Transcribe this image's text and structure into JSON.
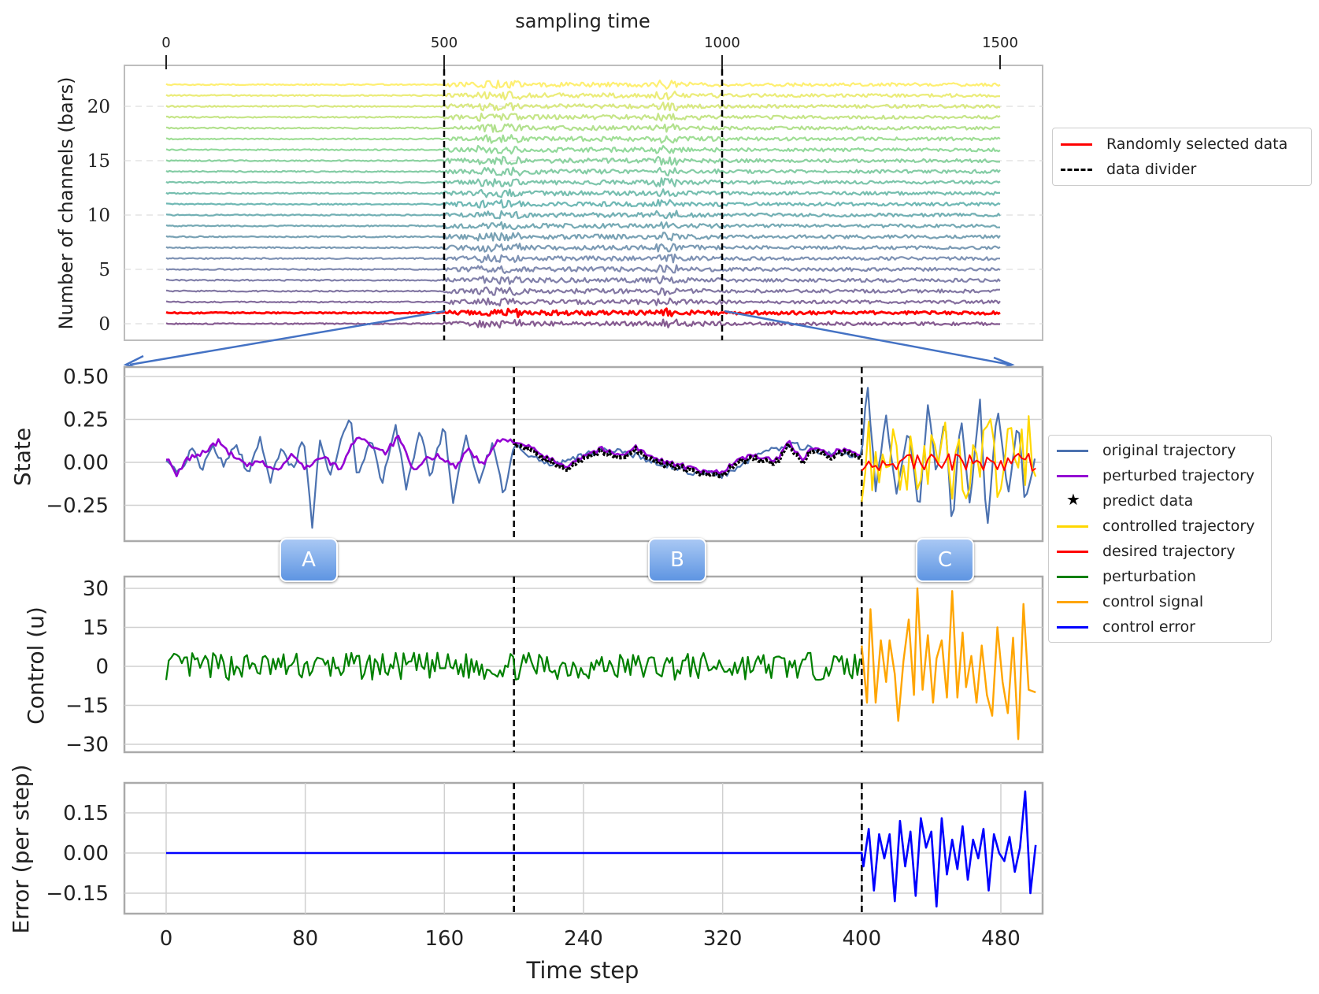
{
  "colors": {
    "original": "#4c72b0",
    "perturbed": "#9400d3",
    "predict": "#000000",
    "controlled": "#ffd700",
    "desired": "#ff0000",
    "perturbation": "#008000",
    "control_signal": "#ffa500",
    "control_error": "#0000ff",
    "selected": "#ff0000",
    "divider": "#000000",
    "arrow": "#4472c4"
  },
  "legend_top": [
    {
      "label": "Randomly selected data",
      "style": "line",
      "color": "#ff0000"
    },
    {
      "label": "data divider",
      "style": "dash",
      "color": "#000000"
    }
  ],
  "legend_bottom": [
    {
      "label": "original trajectory",
      "style": "line",
      "color": "#4c72b0"
    },
    {
      "label": "perturbed trajectory",
      "style": "line",
      "color": "#9400d3"
    },
    {
      "label": "predict data",
      "style": "star",
      "color": "#000000"
    },
    {
      "label": "controlled trajectory",
      "style": "line",
      "color": "#ffd700"
    },
    {
      "label": "desired trajectory",
      "style": "line",
      "color": "#ff0000"
    },
    {
      "label": "perturbation",
      "style": "line",
      "color": "#008000"
    },
    {
      "label": "control signal",
      "style": "line",
      "color": "#ffa500"
    },
    {
      "label": "control error",
      "style": "line",
      "color": "#0000ff"
    }
  ],
  "phase_labels": [
    "A",
    "B",
    "C"
  ],
  "chart_data": [
    {
      "type": "line",
      "title": "",
      "xlabel": "sampling time",
      "xlabel_position": "top",
      "ylabel": "Number of channels (bars)",
      "xlim": [
        0,
        1500
      ],
      "ylim": [
        -1,
        23
      ],
      "xticks": [
        0,
        500,
        1000,
        1500
      ],
      "yticks": [
        0,
        5,
        10,
        15,
        20
      ],
      "grid": "horizontal dashed",
      "channels": 23,
      "channel_offsets": [
        0,
        22
      ],
      "colormap": "viridis",
      "highlighted_channel": 1,
      "dividers": [
        500,
        1000
      ],
      "legend_placement": "right",
      "series": [
        {
          "name": "Randomly selected data",
          "channel": 1
        },
        {
          "name": "data divider",
          "x": [
            500,
            1000
          ]
        }
      ]
    },
    {
      "type": "line",
      "title": "",
      "ylabel": "State",
      "xlim": [
        -6,
        506
      ],
      "ylim": [
        -0.45,
        0.52
      ],
      "yticks": [
        -0.25,
        0.0,
        0.25,
        0.5
      ],
      "ytick_labels": [
        "−0.25",
        "0.00",
        "0.25",
        "0.50"
      ],
      "grid": "on",
      "dividers": [
        200,
        400
      ],
      "series": [
        {
          "name": "original trajectory",
          "x_range": [
            0,
            500
          ],
          "points": [
            [
              0,
              0.03
            ],
            [
              8,
              -0.06
            ],
            [
              15,
              0.08
            ],
            [
              20,
              -0.05
            ],
            [
              27,
              0.1
            ],
            [
              33,
              -0.02
            ],
            [
              40,
              0.12
            ],
            [
              47,
              -0.07
            ],
            [
              54,
              0.14
            ],
            [
              60,
              -0.1
            ],
            [
              66,
              0.09
            ],
            [
              73,
              -0.05
            ],
            [
              79,
              0.16
            ],
            [
              84,
              -0.38
            ],
            [
              88,
              0.14
            ],
            [
              94,
              -0.09
            ],
            [
              100,
              0.1
            ],
            [
              106,
              0.27
            ],
            [
              110,
              -0.1
            ],
            [
              118,
              0.14
            ],
            [
              124,
              -0.12
            ],
            [
              132,
              0.2
            ],
            [
              138,
              -0.14
            ],
            [
              146,
              0.18
            ],
            [
              152,
              -0.08
            ],
            [
              160,
              0.22
            ],
            [
              165,
              -0.24
            ],
            [
              172,
              0.16
            ],
            [
              180,
              -0.1
            ],
            [
              188,
              0.12
            ],
            [
              194,
              -0.2
            ],
            [
              200,
              0.1
            ],
            [
              208,
              0.05
            ],
            [
              220,
              -0.02
            ],
            [
              240,
              0.04
            ],
            [
              260,
              0.08
            ],
            [
              280,
              0.0
            ],
            [
              300,
              -0.05
            ],
            [
              320,
              -0.08
            ],
            [
              340,
              0.05
            ],
            [
              360,
              0.1
            ],
            [
              380,
              0.06
            ],
            [
              400,
              0.03
            ],
            [
              403,
              0.48
            ],
            [
              408,
              -0.15
            ],
            [
              414,
              0.26
            ],
            [
              420,
              -0.2
            ],
            [
              427,
              0.2
            ],
            [
              433,
              -0.3
            ],
            [
              438,
              0.35
            ],
            [
              443,
              -0.1
            ],
            [
              448,
              0.28
            ],
            [
              452,
              -0.42
            ],
            [
              457,
              0.3
            ],
            [
              462,
              -0.25
            ],
            [
              468,
              0.36
            ],
            [
              472,
              -0.4
            ],
            [
              478,
              0.34
            ],
            [
              484,
              -0.2
            ],
            [
              490,
              0.24
            ],
            [
              494,
              -0.25
            ],
            [
              500,
              0.05
            ]
          ]
        },
        {
          "name": "perturbed trajectory",
          "x_range": [
            0,
            400
          ],
          "points": [
            [
              0,
              0.03
            ],
            [
              6,
              -0.08
            ],
            [
              12,
              0.02
            ],
            [
              20,
              0.05
            ],
            [
              30,
              0.12
            ],
            [
              38,
              0.04
            ],
            [
              46,
              -0.02
            ],
            [
              55,
              0.0
            ],
            [
              64,
              -0.05
            ],
            [
              72,
              0.04
            ],
            [
              80,
              -0.03
            ],
            [
              90,
              0.03
            ],
            [
              100,
              -0.04
            ],
            [
              110,
              0.16
            ],
            [
              118,
              0.1
            ],
            [
              126,
              0.06
            ],
            [
              134,
              0.15
            ],
            [
              142,
              -0.06
            ],
            [
              150,
              0.02
            ],
            [
              158,
              0.04
            ],
            [
              166,
              -0.03
            ],
            [
              174,
              0.08
            ],
            [
              182,
              -0.02
            ],
            [
              190,
              0.12
            ],
            [
              200,
              0.13
            ],
            [
              210,
              0.08
            ],
            [
              220,
              0.02
            ],
            [
              230,
              -0.02
            ],
            [
              240,
              0.04
            ],
            [
              250,
              0.08
            ],
            [
              260,
              0.04
            ],
            [
              270,
              0.09
            ],
            [
              280,
              0.02
            ],
            [
              290,
              0.0
            ],
            [
              300,
              -0.03
            ],
            [
              310,
              -0.06
            ],
            [
              320,
              -0.05
            ],
            [
              330,
              0.02
            ],
            [
              340,
              0.04
            ],
            [
              350,
              0.0
            ],
            [
              358,
              0.12
            ],
            [
              366,
              0.02
            ],
            [
              374,
              0.1
            ],
            [
              382,
              0.05
            ],
            [
              390,
              0.08
            ],
            [
              400,
              0.04
            ]
          ]
        },
        {
          "name": "predict data",
          "x_range": [
            200,
            400
          ]
        },
        {
          "name": "controlled trajectory",
          "x_range": [
            400,
            500
          ]
        },
        {
          "name": "desired trajectory",
          "x_range": [
            400,
            500
          ]
        }
      ]
    },
    {
      "type": "line",
      "title": "",
      "ylabel": "Control (u)",
      "xlim": [
        -6,
        506
      ],
      "ylim": [
        -31,
        33
      ],
      "yticks": [
        -30,
        -15,
        0,
        15,
        30
      ],
      "ytick_labels": [
        "−30",
        "−15",
        "0",
        "15",
        "30"
      ],
      "grid": "on",
      "dividers": [
        200,
        400
      ],
      "series": [
        {
          "name": "perturbation",
          "x_range": [
            0,
            400
          ],
          "amplitude": 7
        },
        {
          "name": "control signal",
          "x_range": [
            400,
            500
          ],
          "points": [
            [
              400,
              8
            ],
            [
              403,
              -14
            ],
            [
              405,
              22
            ],
            [
              408,
              -14
            ],
            [
              411,
              10
            ],
            [
              414,
              -6
            ],
            [
              416,
              10
            ],
            [
              419,
              -3
            ],
            [
              421,
              -21
            ],
            [
              424,
              2
            ],
            [
              427,
              18
            ],
            [
              430,
              -11
            ],
            [
              432,
              30
            ],
            [
              435,
              -9
            ],
            [
              438,
              12
            ],
            [
              441,
              -14
            ],
            [
              443,
              3
            ],
            [
              446,
              10
            ],
            [
              449,
              -12
            ],
            [
              452,
              29
            ],
            [
              455,
              -12
            ],
            [
              458,
              13
            ],
            [
              460,
              -8
            ],
            [
              463,
              4
            ],
            [
              466,
              -14
            ],
            [
              469,
              8
            ],
            [
              472,
              -11
            ],
            [
              475,
              -19
            ],
            [
              478,
              15
            ],
            [
              481,
              -6
            ],
            [
              484,
              -18
            ],
            [
              487,
              11
            ],
            [
              490,
              -28
            ],
            [
              493,
              24
            ],
            [
              496,
              -9
            ],
            [
              500,
              -10
            ]
          ]
        }
      ]
    },
    {
      "type": "line",
      "title": "",
      "xlabel": "Time step",
      "ylabel": "Error (per step)",
      "xlim": [
        -6,
        506
      ],
      "ylim": [
        -0.22,
        0.25
      ],
      "xticks": [
        0,
        80,
        160,
        240,
        320,
        400,
        480
      ],
      "yticks": [
        -0.15,
        0.0,
        0.15
      ],
      "ytick_labels": [
        "−0.15",
        "0.00",
        "0.15"
      ],
      "grid": "on",
      "dividers": [
        200,
        400
      ],
      "series": [
        {
          "name": "control error",
          "x_range": [
            0,
            500
          ],
          "points": [
            [
              0,
              0
            ],
            [
              400,
              0
            ],
            [
              401,
              -0.05
            ],
            [
              404,
              0.09
            ],
            [
              407,
              -0.14
            ],
            [
              410,
              0.07
            ],
            [
              413,
              -0.02
            ],
            [
              416,
              0.07
            ],
            [
              419,
              -0.18
            ],
            [
              422,
              0.12
            ],
            [
              425,
              -0.05
            ],
            [
              428,
              0.08
            ],
            [
              431,
              -0.16
            ],
            [
              434,
              0.13
            ],
            [
              437,
              0.02
            ],
            [
              440,
              0.08
            ],
            [
              443,
              -0.2
            ],
            [
              446,
              0.13
            ],
            [
              449,
              -0.08
            ],
            [
              452,
              0.05
            ],
            [
              455,
              -0.06
            ],
            [
              458,
              0.1
            ],
            [
              461,
              -0.1
            ],
            [
              464,
              0.05
            ],
            [
              467,
              -0.02
            ],
            [
              470,
              0.09
            ],
            [
              473,
              -0.14
            ],
            [
              476,
              0.07
            ],
            [
              479,
              0.0
            ],
            [
              482,
              -0.03
            ],
            [
              485,
              0.06
            ],
            [
              488,
              -0.07
            ],
            [
              491,
              0.02
            ],
            [
              494,
              0.23
            ],
            [
              497,
              -0.15
            ],
            [
              500,
              0.03
            ]
          ]
        }
      ]
    }
  ]
}
